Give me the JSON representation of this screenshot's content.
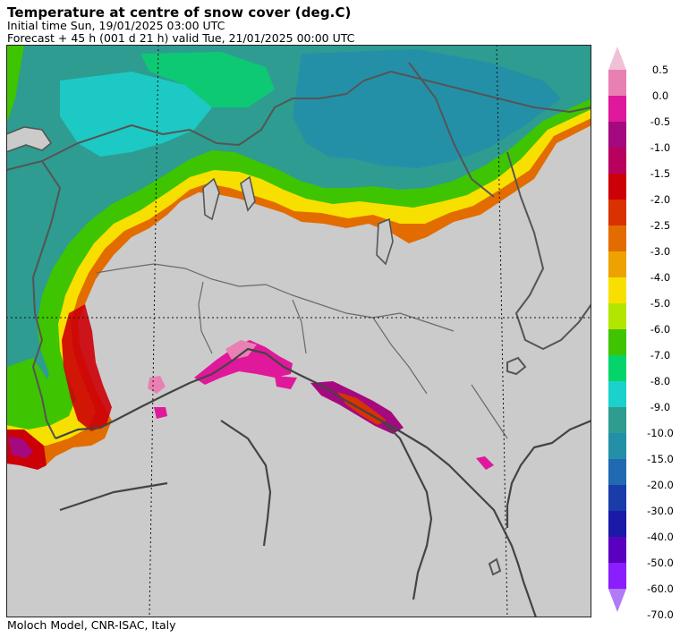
{
  "header": {
    "title": "Temperature at centre of snow cover (deg.C)",
    "initial_time": "Initial time  Sun, 19/01/2025  03:00 UTC",
    "forecast": "Forecast  +  45 h  (001 d 21 h)  valid Tue, 21/01/2025 00:00 UTC"
  },
  "footer": {
    "credit": "Moloch Model, CNR-ISAC, Italy"
  },
  "legend": {
    "colors": [
      "#f2c0d6",
      "#e980b3",
      "#e0189b",
      "#a5097f",
      "#b8005f",
      "#cc0007",
      "#d93200",
      "#e36c00",
      "#eda200",
      "#f7e000",
      "#b2e600",
      "#3ec400",
      "#05d46b",
      "#1ad1cc",
      "#2e9c91",
      "#2490a8",
      "#1f6ab0",
      "#1a3caa",
      "#1b19a7",
      "#5a00c0",
      "#8a1efd",
      "#b27af5"
    ],
    "labels": [
      "0.5",
      "0.0",
      "-0.5",
      "-1.0",
      "-1.5",
      "-2.0",
      "-2.5",
      "-3.0",
      "-4.0",
      "-5.0",
      "-6.0",
      "-7.0",
      "-8.0",
      "-9.0",
      "-10.0",
      "-15.0",
      "-20.0",
      "-30.0",
      "-40.0",
      "-50.0",
      "-60.0",
      "-70.0"
    ]
  },
  "map_colors": {
    "land": "#cbcbcb",
    "border": "#555555",
    "grid": "#111111"
  }
}
